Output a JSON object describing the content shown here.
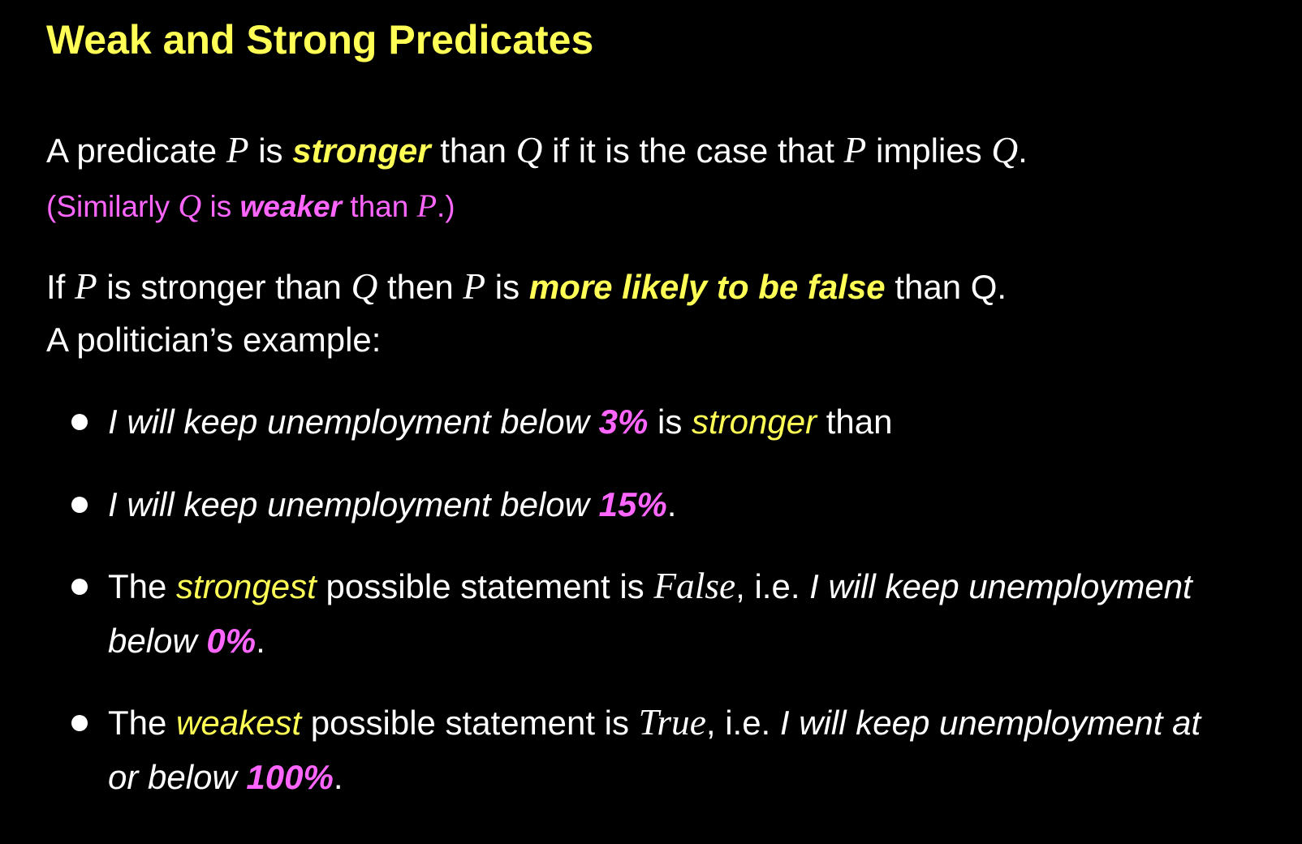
{
  "title": "Weak and Strong Predicates",
  "para1": {
    "t1": "A predicate ",
    "p": "P",
    "t2": " is ",
    "stronger": "stronger",
    "t3": " than ",
    "q": "Q",
    "t4": " if it is the case that ",
    "p2": "P",
    "t5": " implies ",
    "q2": "Q",
    "t6": "."
  },
  "para2": {
    "t1": "(Similarly ",
    "q": "Q",
    "t2": " is ",
    "weaker": "weaker",
    "t3": " than ",
    "p": "P",
    "t4": ".)"
  },
  "para3": {
    "t1": "If ",
    "p": "P",
    "t2": " is stronger than ",
    "q": "Q",
    "t3": " then ",
    "p2": "P",
    "t4": " is ",
    "emph": "more likely to be false",
    "t5": " than Q."
  },
  "para4": "A politician’s example:",
  "bullets": {
    "b1": {
      "i1": "I will keep unemployment below ",
      "pct": "3%",
      "t1": " is ",
      "strong": "stronger",
      "t2": " than"
    },
    "b2": {
      "i1": "I will keep unemployment below ",
      "pct": "15%",
      "t1": "."
    },
    "b3": {
      "t1": "The ",
      "strongest": "strongest",
      "t2": " possible statement is ",
      "val": "False",
      "t3": ", i.e. ",
      "i1": "I will keep unemployment",
      "i2": "below ",
      "pct": "0%",
      "t4": "."
    },
    "b4": {
      "t1": "The ",
      "weakest": "weakest",
      "t2": " possible statement is ",
      "val": "True",
      "t3": ", i.e. ",
      "i1": "I will keep unemployment at",
      "i2": "or below ",
      "pct": "100%",
      "t4": "."
    }
  },
  "colors": {
    "background": "#000000",
    "title": "#ffff55",
    "emphasis_yellow": "#ffff55",
    "emphasis_magenta": "#ff66ff",
    "text": "#ffffff"
  }
}
